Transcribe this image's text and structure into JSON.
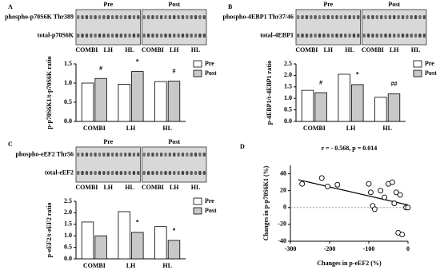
{
  "chart_data": [
    {
      "type": "bar",
      "panel": "A",
      "blot": {
        "groups": [
          "Pre",
          "Post"
        ],
        "row_labels": [
          "phospho-p70S6K Thr389",
          "total-p70S6K"
        ],
        "lanes": [
          "COMBI",
          "LH",
          "HL",
          "COMBI",
          "LH",
          "HL"
        ]
      },
      "y_label": "p-p70S6K1/t-p70S6K ratio",
      "categories": [
        "COMBI",
        "LH",
        "HL"
      ],
      "series": [
        {
          "name": "Pre",
          "color": "#ffffff",
          "values": [
            1.0,
            0.97,
            1.04
          ]
        },
        {
          "name": "Post",
          "color": "#c8c8c8",
          "values": [
            1.12,
            1.3,
            1.05
          ]
        }
      ],
      "post_marks": [
        "#",
        "*",
        "#"
      ],
      "ylim": [
        0,
        1.5
      ],
      "yticks": [
        {
          "value": 0,
          "label": "0.0"
        },
        {
          "value": 0.5,
          "label": "0.5"
        },
        {
          "value": 1,
          "label": "1.0"
        },
        {
          "value": 1.5,
          "label": "1.5"
        }
      ]
    },
    {
      "type": "bar",
      "panel": "B",
      "blot": {
        "groups": [
          "Pre",
          "Post"
        ],
        "row_labels": [
          "phospho-4EBP1 Thr37/46",
          "total-4EBP1"
        ],
        "lanes": [
          "COMBI",
          "LH",
          "HL",
          "COMBI",
          "LH",
          "HL"
        ]
      },
      "y_label": "p-4EBP1/t-4EBP1 ratio",
      "categories": [
        "COMBI",
        "LH",
        "HL"
      ],
      "series": [
        {
          "name": "Pre",
          "color": "#ffffff",
          "values": [
            1.35,
            2.05,
            1.05
          ]
        },
        {
          "name": "Post",
          "color": "#c8c8c8",
          "values": [
            1.25,
            1.6,
            1.2
          ]
        }
      ],
      "post_marks": [
        "#",
        "*",
        "##"
      ],
      "ylim": [
        0,
        2.5
      ],
      "yticks": [
        {
          "value": 0,
          "label": "0.0"
        },
        0.5,
        {
          "value": 1,
          "label": "1.0"
        },
        1.5,
        {
          "value": 2,
          "label": "2.0"
        },
        2.5
      ]
    },
    {
      "type": "bar",
      "panel": "C",
      "blot": {
        "groups": [
          "Pre",
          "Post"
        ],
        "row_labels": [
          "phospho-eEF2 Thr56",
          "total-eEF2"
        ],
        "lanes": [
          "COMBI",
          "LH",
          "HL",
          "COMBI",
          "LH",
          "HL"
        ]
      },
      "y_label": "p-eEF2/t-eEF2 ratio",
      "categories": [
        "COMBI",
        "LH",
        "HL"
      ],
      "series": [
        {
          "name": "Pre",
          "color": "#ffffff",
          "values": [
            1.6,
            2.05,
            1.4
          ]
        },
        {
          "name": "Post",
          "color": "#c8c8c8",
          "values": [
            1.0,
            1.15,
            0.8
          ]
        }
      ],
      "post_marks": [
        null,
        "*",
        "*"
      ],
      "ylim": [
        0,
        2.5
      ],
      "yticks": [
        {
          "value": 0,
          "label": "0.0"
        },
        0.5,
        {
          "value": 1,
          "label": "1.0"
        },
        1.5,
        {
          "value": 2,
          "label": "2.0"
        },
        2.5
      ]
    },
    {
      "type": "scatter",
      "panel": "D",
      "title": "r = - 0.568, p = 0.014",
      "x_label": "Changes in p-eEF2 (%)",
      "y_label": "Changes in p-p70S6K1 (%)",
      "x": [
        -270,
        -220,
        -205,
        -180,
        -100,
        -95,
        -90,
        -85,
        -70,
        -60,
        -50,
        -40,
        -35,
        -30,
        -20,
        -25,
        -15,
        -5,
        0
      ],
      "y": [
        28,
        35,
        25,
        27,
        28,
        18,
        2,
        -2,
        20,
        12,
        28,
        30,
        5,
        18,
        15,
        -30,
        -32,
        0,
        0
      ],
      "trendline": {
        "x": [
          -280,
          0
        ],
        "y": [
          33,
          3
        ]
      },
      "hline": 0,
      "xlim": [
        -300,
        0
      ],
      "xticks": [
        -300,
        -200,
        -100,
        0
      ],
      "ylim": [
        -40,
        50
      ],
      "yticks": [
        -40,
        -20,
        0,
        20,
        40
      ]
    }
  ]
}
